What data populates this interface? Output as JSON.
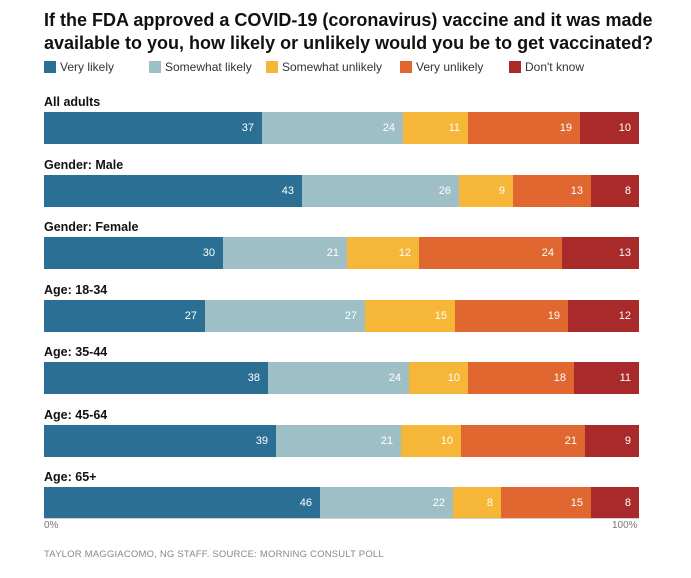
{
  "title": "If the FDA approved a COVID-19 (coronavirus) vaccine and it was made available to you, how likely or unlikely would you be to get vaccinated?",
  "source": "TAYLOR MAGGIACOMO, NG STAFF. SOURCE: MORNING CONSULT POLL",
  "chart_data": {
    "type": "bar",
    "orientation": "horizontal-stacked",
    "categories": [
      "All adults",
      "Gender: Male",
      "Gender: Female",
      "Age: 18-34",
      "Age: 35-44",
      "Age: 45-64",
      "Age: 65+"
    ],
    "series": [
      {
        "name": "Very likely",
        "color": "#2b6f94",
        "values": [
          37,
          43,
          30,
          27,
          38,
          39,
          46
        ]
      },
      {
        "name": "Somewhat likely",
        "color": "#9fbfc7",
        "values": [
          24,
          26,
          21,
          27,
          24,
          21,
          22
        ]
      },
      {
        "name": "Somewhat unlikely",
        "color": "#f6b637",
        "values": [
          11,
          9,
          12,
          15,
          10,
          10,
          8
        ]
      },
      {
        "name": "Very unlikely",
        "color": "#e0672f",
        "values": [
          19,
          13,
          24,
          19,
          18,
          21,
          15
        ]
      },
      {
        "name": "Don't know",
        "color": "#a82a2a",
        "values": [
          10,
          8,
          13,
          12,
          11,
          9,
          8
        ]
      }
    ],
    "xlim": [
      0,
      100
    ],
    "x_tick_labels": [
      "0%",
      "100%"
    ],
    "legend_position": "top"
  }
}
